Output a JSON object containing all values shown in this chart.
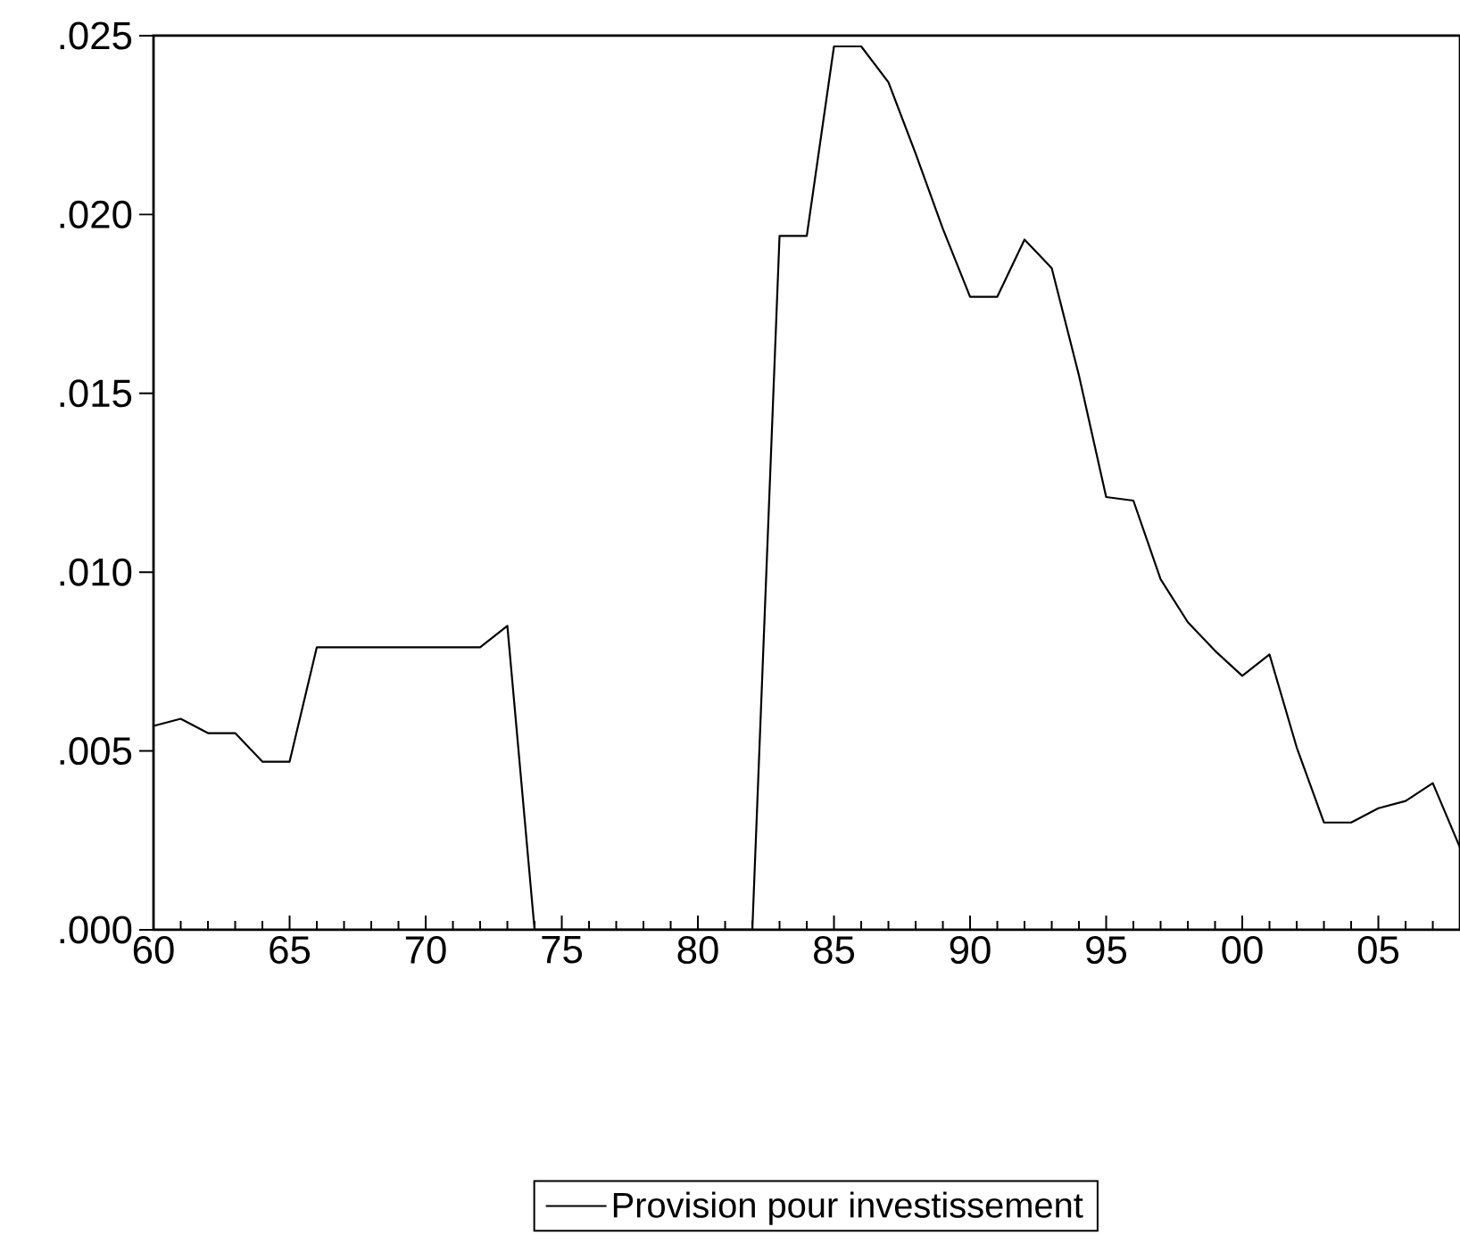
{
  "chart_data": {
    "type": "line",
    "x": [
      1960,
      1961,
      1962,
      1963,
      1964,
      1965,
      1966,
      1967,
      1968,
      1969,
      1970,
      1971,
      1972,
      1973,
      1974,
      1975,
      1976,
      1977,
      1978,
      1979,
      1980,
      1981,
      1982,
      1983,
      1984,
      1985,
      1986,
      1987,
      1988,
      1989,
      1990,
      1991,
      1992,
      1993,
      1994,
      1995,
      1996,
      1997,
      1998,
      1999,
      2000,
      2001,
      2002,
      2003,
      2004,
      2005,
      2006,
      2007,
      2008
    ],
    "series": [
      {
        "name": "Provision pour investissement",
        "color": "#000000",
        "values": [
          0.0057,
          0.0059,
          0.0055,
          0.0055,
          0.0047,
          0.0047,
          0.0079,
          0.0079,
          0.0079,
          0.0079,
          0.0079,
          0.0079,
          0.0079,
          0.0085,
          0,
          0,
          0,
          0,
          0,
          0,
          0,
          0,
          0,
          0.0194,
          0.0194,
          0.0247,
          0.0247,
          0.0237,
          0.0217,
          0.0196,
          0.0177,
          0.0177,
          0.0193,
          0.0185,
          0.0155,
          0.0121,
          0.012,
          0.0098,
          0.0086,
          0.0078,
          0.0071,
          0.0077,
          0.0051,
          0.003,
          0.003,
          0.0034,
          0.0036,
          0.0041,
          0.0023
        ]
      }
    ],
    "xlim": [
      1960,
      2008
    ],
    "ylim": [
      0,
      0.025
    ],
    "xticks": [
      {
        "value": 1960,
        "label": "60"
      },
      {
        "value": 1961,
        "label": null
      },
      {
        "value": 1962,
        "label": null
      },
      {
        "value": 1963,
        "label": null
      },
      {
        "value": 1964,
        "label": null
      },
      {
        "value": 1965,
        "label": "65"
      },
      {
        "value": 1966,
        "label": null
      },
      {
        "value": 1967,
        "label": null
      },
      {
        "value": 1968,
        "label": null
      },
      {
        "value": 1969,
        "label": null
      },
      {
        "value": 1970,
        "label": "70"
      },
      {
        "value": 1971,
        "label": null
      },
      {
        "value": 1972,
        "label": null
      },
      {
        "value": 1973,
        "label": null
      },
      {
        "value": 1974,
        "label": null
      },
      {
        "value": 1975,
        "label": "75"
      },
      {
        "value": 1976,
        "label": null
      },
      {
        "value": 1977,
        "label": null
      },
      {
        "value": 1978,
        "label": null
      },
      {
        "value": 1979,
        "label": null
      },
      {
        "value": 1980,
        "label": "80"
      },
      {
        "value": 1981,
        "label": null
      },
      {
        "value": 1982,
        "label": null
      },
      {
        "value": 1983,
        "label": null
      },
      {
        "value": 1984,
        "label": null
      },
      {
        "value": 1985,
        "label": "85"
      },
      {
        "value": 1986,
        "label": null
      },
      {
        "value": 1987,
        "label": null
      },
      {
        "value": 1988,
        "label": null
      },
      {
        "value": 1989,
        "label": null
      },
      {
        "value": 1990,
        "label": "90"
      },
      {
        "value": 1991,
        "label": null
      },
      {
        "value": 1992,
        "label": null
      },
      {
        "value": 1993,
        "label": null
      },
      {
        "value": 1994,
        "label": null
      },
      {
        "value": 1995,
        "label": "95"
      },
      {
        "value": 1996,
        "label": null
      },
      {
        "value": 1997,
        "label": null
      },
      {
        "value": 1998,
        "label": null
      },
      {
        "value": 1999,
        "label": null
      },
      {
        "value": 2000,
        "label": "00"
      },
      {
        "value": 2001,
        "label": null
      },
      {
        "value": 2002,
        "label": null
      },
      {
        "value": 2003,
        "label": null
      },
      {
        "value": 2004,
        "label": null
      },
      {
        "value": 2005,
        "label": "05"
      },
      {
        "value": 2006,
        "label": null
      },
      {
        "value": 2007,
        "label": null
      }
    ],
    "yticks": [
      {
        "value": 0,
        "label": ".000"
      },
      {
        "value": 0.005,
        "label": ".005"
      },
      {
        "value": 0.01,
        "label": ".010"
      },
      {
        "value": 0.015,
        "label": ".015"
      },
      {
        "value": 0.02,
        "label": ".020"
      },
      {
        "value": 0.025,
        "label": ".025"
      }
    ],
    "legend": "bottom",
    "line_style": "solid"
  }
}
